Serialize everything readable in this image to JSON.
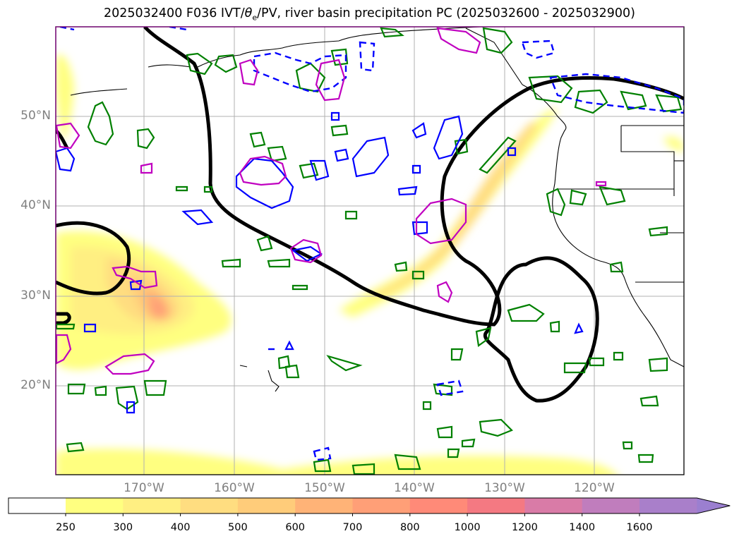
{
  "title": {
    "prefix": "2025032400 F036 IVT/",
    "theta": "θ",
    "theta_sub": "e",
    "suffix": "/PV, river basin precipitation PC (2025032600 - 2025032900)"
  },
  "lat_labels": [
    "50°N",
    "40°N",
    "30°N",
    "20°N"
  ],
  "lon_labels": [
    "170°W",
    "160°W",
    "150°W",
    "140°W",
    "130°W",
    "120°W"
  ],
  "colorbar": {
    "ticks": [
      "250",
      "300",
      "400",
      "500",
      "600",
      "700",
      "800",
      "1000",
      "1200",
      "1400",
      "1600"
    ],
    "colors": [
      "#ffff80",
      "#ffef82",
      "#ffdd80",
      "#ffcc7a",
      "#ffb377",
      "#ff9f77",
      "#ff8a78",
      "#f47982",
      "#d97ba7",
      "#c07dbd",
      "#a97fca",
      "#9b7fd0"
    ]
  },
  "colors": {
    "ivt_contour": "#000000",
    "theta_e_contour": "#008000",
    "pv_contour": "#0000ff",
    "precip_contour": "#c000c0",
    "coastline": "#000000",
    "grid": "#b0b0b0"
  }
}
